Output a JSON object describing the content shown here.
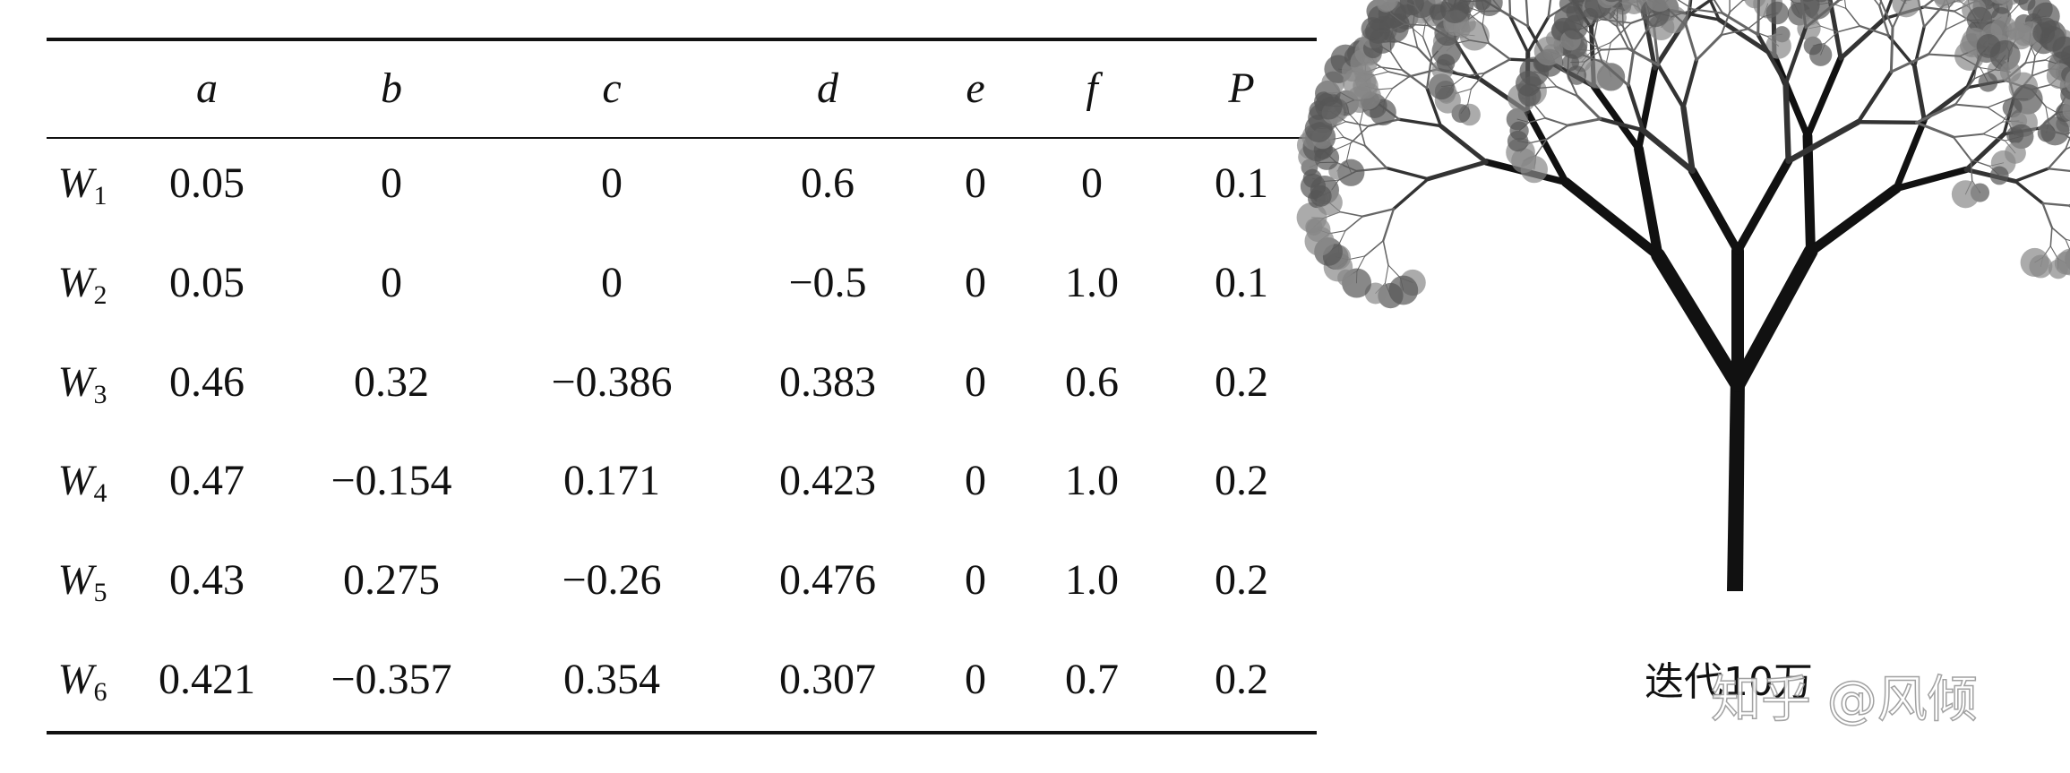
{
  "table": {
    "columns": [
      "a",
      "b",
      "c",
      "d",
      "e",
      "f",
      "P"
    ],
    "rows": [
      {
        "name": "W",
        "index": "1",
        "cells": [
          "0.05",
          "0",
          "0",
          "0.6",
          "0",
          "0",
          "0.1"
        ]
      },
      {
        "name": "W",
        "index": "2",
        "cells": [
          "0.05",
          "0",
          "0",
          "−0.5",
          "0",
          "1.0",
          "0.1"
        ]
      },
      {
        "name": "W",
        "index": "3",
        "cells": [
          "0.46",
          "0.32",
          "−0.386",
          "0.383",
          "0",
          "0.6",
          "0.2"
        ]
      },
      {
        "name": "W",
        "index": "4",
        "cells": [
          "0.47",
          "−0.154",
          "0.171",
          "0.423",
          "0",
          "1.0",
          "0.2"
        ]
      },
      {
        "name": "W",
        "index": "5",
        "cells": [
          "0.43",
          "0.275",
          "−0.26",
          "0.476",
          "0",
          "1.0",
          "0.2"
        ]
      },
      {
        "name": "W",
        "index": "6",
        "cells": [
          "0.421",
          "−0.357",
          "0.354",
          "0.307",
          "0",
          "0.7",
          "0.2"
        ]
      }
    ]
  },
  "figure": {
    "caption": "迭代10万"
  },
  "watermark": "知乎 @风倾"
}
